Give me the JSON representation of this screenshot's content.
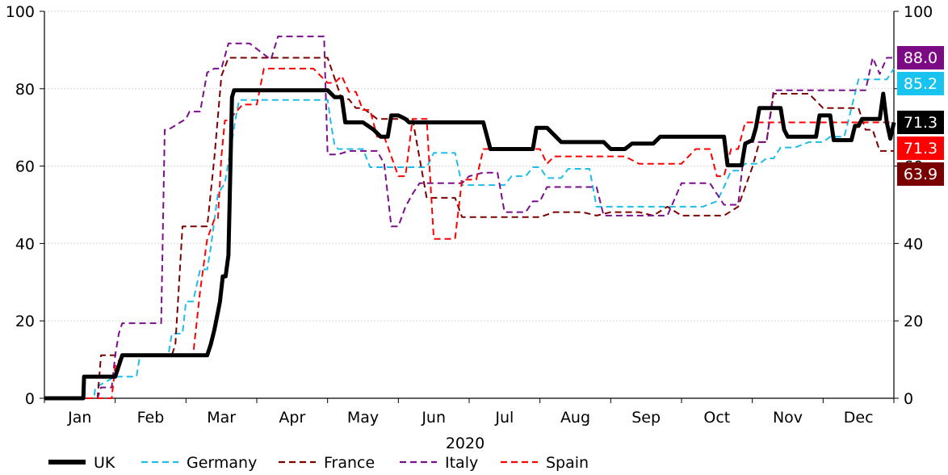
{
  "chart_data": {
    "type": "line",
    "xlabel": "2020",
    "months": [
      "Jan",
      "Feb",
      "Mar",
      "Apr",
      "May",
      "Jun",
      "Jul",
      "Aug",
      "Sep",
      "Oct",
      "Nov",
      "Dec"
    ],
    "ylim": [
      0,
      100
    ],
    "yticks": [
      0,
      20,
      40,
      60,
      80,
      100
    ],
    "xlim": [
      0,
      12
    ],
    "grid": true,
    "legend_position": "bottom",
    "series": [
      {
        "name": "UK",
        "color": "#000000",
        "style": "solid",
        "end_label": "71.3",
        "end_label_color": "#000000",
        "x": [
          0,
          0.55,
          0.56,
          1.0,
          1.1,
          1.12,
          2.3,
          2.35,
          2.4,
          2.45,
          2.48,
          2.52,
          2.56,
          2.6,
          2.65,
          2.68,
          2.72,
          2.75,
          2.8,
          2.85,
          2.9,
          3.1,
          4.0,
          4.1,
          4.2,
          4.25,
          4.3,
          4.45,
          4.5,
          4.65,
          4.75,
          4.85,
          4.9,
          5.0,
          5.1,
          5.15,
          5.3,
          5.35,
          5.4,
          5.45,
          5.5,
          5.55,
          5.6,
          5.7,
          5.8,
          5.9,
          6.2,
          6.3,
          6.35,
          6.45,
          6.9,
          6.95,
          7.0,
          7.1,
          7.3,
          7.4,
          7.6,
          7.8,
          7.9,
          8.0,
          8.1,
          8.2,
          8.3,
          8.4,
          8.6,
          8.7,
          8.9,
          9.0,
          9.6,
          9.65,
          9.85,
          9.9,
          10.0,
          10.05,
          10.1,
          10.35,
          10.4,
          10.45,
          10.5,
          10.9,
          10.95,
          11.0,
          11.1,
          11.15,
          11.4,
          11.45,
          11.5,
          11.55,
          11.6,
          11.7,
          11.8,
          11.85,
          11.9,
          11.95,
          12.0
        ],
        "y": [
          0,
          0,
          5.6,
          5.6,
          11.1,
          11.1,
          11.1,
          13.9,
          17.6,
          22.2,
          25,
          31.5,
          31.5,
          37,
          77.8,
          79.6,
          79.6,
          79.6,
          79.6,
          79.6,
          79.6,
          79.6,
          79.6,
          77.8,
          77.8,
          71.3,
          71.3,
          71.3,
          71.3,
          69.4,
          67.6,
          67.6,
          73.1,
          73.1,
          72.2,
          71.3,
          71.3,
          71.3,
          71.3,
          71.3,
          71.3,
          71.3,
          71.3,
          71.3,
          71.3,
          71.3,
          71.3,
          64.4,
          64.4,
          64.4,
          64.4,
          69.9,
          69.9,
          69.9,
          66.2,
          66.2,
          66.2,
          66.2,
          66.2,
          64.4,
          64.4,
          64.4,
          65.8,
          65.8,
          65.8,
          67.6,
          67.6,
          67.6,
          67.6,
          60.2,
          60.2,
          65.8,
          66.7,
          69.9,
          75,
          75,
          75,
          69.4,
          67.6,
          67.6,
          73.1,
          73.1,
          73.1,
          66.7,
          66.7,
          70.4,
          70.4,
          72.2,
          72.2,
          72.2,
          72.2,
          78.7,
          71.3,
          67.1,
          71.3
        ]
      },
      {
        "name": "Germany",
        "color": "#1fbde9",
        "style": "dashed",
        "end_label": "85.2",
        "end_label_color": "#19c3ef",
        "x": [
          0,
          0.7,
          0.72,
          1.0,
          1.3,
          1.35,
          1.75,
          1.8,
          1.85,
          1.95,
          2.0,
          2.1,
          2.2,
          2.3,
          2.35,
          2.45,
          2.55,
          2.6,
          2.7,
          2.75,
          2.8,
          2.9,
          3.1,
          3.5,
          4.0,
          4.05,
          4.1,
          4.15,
          4.3,
          4.5,
          4.6,
          4.7,
          5.0,
          5.15,
          5.3,
          5.4,
          5.5,
          5.7,
          5.8,
          5.9,
          6.0,
          6.2,
          6.4,
          6.5,
          6.6,
          6.8,
          6.9,
          7.0,
          7.1,
          7.2,
          7.3,
          7.4,
          7.5,
          7.6,
          7.7,
          7.8,
          7.9,
          8.0,
          8.1,
          8.2,
          8.3,
          8.5,
          8.8,
          8.9,
          9.0,
          9.1,
          9.2,
          9.3,
          9.5,
          9.6,
          9.7,
          9.8,
          9.9,
          10.0,
          10.1,
          10.2,
          10.3,
          10.4,
          10.5,
          10.6,
          10.8,
          10.9,
          11.0,
          11.1,
          11.2,
          11.3,
          11.4,
          11.5,
          11.6,
          11.7,
          11.8,
          11.9,
          12.0
        ],
        "y": [
          0,
          0,
          2.8,
          5.6,
          5.6,
          11.1,
          11.1,
          16.7,
          16.7,
          16.7,
          25,
          25,
          33.3,
          33.3,
          38.9,
          52.8,
          55.6,
          61.1,
          72.2,
          77.1,
          77.1,
          77.1,
          77.1,
          77.1,
          77.1,
          70.8,
          65.3,
          64.4,
          64.4,
          64.4,
          59.7,
          59.7,
          59.7,
          59.7,
          59.7,
          59.7,
          63.4,
          63.4,
          63.4,
          55.1,
          55.1,
          55.1,
          55.1,
          55.1,
          57.4,
          57.4,
          59.7,
          59.7,
          56.9,
          56.9,
          56.9,
          59.3,
          59.3,
          59.3,
          59.3,
          49.5,
          49.5,
          49.5,
          49.5,
          49.5,
          49.5,
          49.5,
          49.5,
          49.5,
          49.5,
          49.5,
          49.5,
          49.5,
          50.9,
          54.6,
          58.8,
          58.8,
          60.6,
          60.6,
          60.6,
          62.0,
          62.0,
          64.8,
          64.8,
          64.8,
          66.2,
          66.2,
          66.2,
          67.6,
          67.6,
          67.6,
          75.0,
          82.4,
          82.4,
          82.4,
          82.4,
          82.4,
          85.2
        ]
      },
      {
        "name": "France",
        "color": "#7b0000",
        "style": "dashed",
        "end_label": "63.9",
        "end_label_color": "#7a0000",
        "x": [
          0,
          0.75,
          0.8,
          1.0,
          1.1,
          1.12,
          1.8,
          1.85,
          1.95,
          2.0,
          2.3,
          2.4,
          2.5,
          2.55,
          2.6,
          3.2,
          3.3,
          3.4,
          4.0,
          4.2,
          4.3,
          4.4,
          4.5,
          4.7,
          4.9,
          5.1,
          5.2,
          5.4,
          5.6,
          5.8,
          5.9,
          6.0,
          6.5,
          6.8,
          6.9,
          7.0,
          7.2,
          7.3,
          7.5,
          7.6,
          7.8,
          8.0,
          8.2,
          8.4,
          8.6,
          8.8,
          9.0,
          9.2,
          9.4,
          9.6,
          9.8,
          10.0,
          10.1,
          10.2,
          10.3,
          10.4,
          10.5,
          10.8,
          11.0,
          11.1,
          11.2,
          11.5,
          11.6,
          11.7,
          11.8,
          11.9,
          12.0
        ],
        "y": [
          0,
          0,
          11.1,
          11.1,
          11.1,
          11.1,
          11.1,
          13.9,
          44.4,
          44.4,
          44.4,
          62,
          83.3,
          85.6,
          88,
          88,
          88,
          88,
          88,
          77.3,
          77.3,
          75,
          75,
          72.2,
          72.2,
          72.2,
          72.2,
          51.8,
          51.8,
          51.8,
          46.8,
          46.8,
          46.8,
          46.8,
          46.8,
          46.8,
          48.1,
          48.1,
          48.1,
          48.1,
          47.2,
          48.1,
          48.1,
          48.1,
          47.2,
          49.5,
          47.2,
          47.2,
          47.2,
          47.2,
          49.5,
          59.7,
          66.2,
          66.2,
          78.7,
          78.7,
          78.7,
          78.7,
          75.0,
          75.0,
          75.0,
          75.0,
          69.4,
          69.4,
          63.9,
          63.9,
          63.9
        ]
      },
      {
        "name": "Italy",
        "color": "#7a0f8b",
        "style": "dashed",
        "end_label": "88.0",
        "end_label_color": "#7d0a85",
        "x": [
          0,
          0.75,
          0.8,
          0.95,
          1.0,
          1.05,
          1.1,
          1.6,
          1.65,
          1.7,
          1.75,
          2.0,
          2.05,
          2.2,
          2.3,
          2.4,
          2.5,
          2.6,
          2.65,
          2.9,
          3.2,
          3.3,
          3.5,
          3.8,
          3.95,
          4.0,
          4.15,
          4.3,
          4.4,
          4.5,
          4.6,
          4.7,
          4.8,
          4.9,
          5.0,
          5.1,
          5.2,
          5.3,
          5.4,
          5.5,
          5.6,
          5.7,
          5.8,
          5.9,
          6.0,
          6.2,
          6.3,
          6.4,
          6.5,
          6.6,
          6.7,
          6.8,
          6.9,
          7.0,
          7.1,
          7.2,
          7.3,
          7.4,
          7.5,
          7.6,
          7.7,
          7.8,
          7.9,
          8.0,
          8.2,
          8.4,
          8.6,
          8.8,
          9.0,
          9.2,
          9.4,
          9.6,
          9.7,
          9.8,
          9.9,
          10.0,
          10.1,
          10.2,
          10.3,
          10.4,
          10.5,
          10.6,
          10.8,
          11.0,
          11.2,
          11.4,
          11.5,
          11.6,
          11.7,
          11.8,
          11.9,
          12.0
        ],
        "y": [
          0,
          0,
          2.8,
          2.8,
          11.1,
          16.7,
          19.4,
          19.4,
          19.4,
          69.4,
          69.4,
          72.2,
          74.1,
          74.1,
          84.2,
          85.2,
          85.2,
          91.7,
          91.7,
          91.7,
          87.5,
          93.5,
          93.5,
          93.5,
          93.5,
          63.0,
          63.0,
          63.9,
          63.9,
          63.9,
          63.9,
          63.9,
          60.6,
          44.4,
          44.4,
          49.5,
          52.8,
          55.6,
          55.6,
          55.6,
          55.6,
          55.6,
          55.6,
          55.6,
          57.4,
          58.3,
          58.3,
          58.3,
          48.1,
          48.1,
          48.1,
          48.1,
          50.9,
          50.9,
          54.6,
          54.6,
          54.6,
          54.6,
          54.6,
          54.6,
          54.6,
          54.6,
          47.2,
          47.2,
          47.2,
          47.2,
          47.2,
          47.2,
          55.6,
          55.6,
          55.6,
          50.0,
          50.0,
          50.0,
          66.2,
          66.2,
          66.2,
          66.2,
          79.6,
          79.6,
          79.6,
          79.6,
          79.6,
          79.6,
          79.6,
          79.6,
          79.6,
          79.6,
          88.0,
          83.8,
          88.0,
          88.0
        ]
      },
      {
        "name": "Spain",
        "color": "#ff0000",
        "style": "dashed",
        "end_label": "71.3",
        "end_label_color": "#ff0000",
        "x": [
          0,
          0.95,
          1.0,
          1.1,
          1.12,
          2.0,
          2.1,
          2.2,
          2.3,
          2.4,
          2.45,
          2.5,
          2.55,
          2.6,
          2.8,
          2.9,
          3.0,
          3.1,
          3.4,
          3.5,
          3.8,
          4.0,
          4.1,
          4.2,
          4.3,
          4.4,
          4.5,
          4.6,
          4.7,
          4.8,
          4.9,
          5.0,
          5.1,
          5.2,
          5.4,
          5.5,
          5.6,
          5.8,
          5.9,
          6.0,
          6.1,
          6.2,
          6.5,
          6.8,
          6.9,
          7.0,
          7.1,
          7.2,
          7.5,
          7.8,
          8.0,
          8.2,
          8.4,
          8.6,
          8.8,
          9.0,
          9.2,
          9.3,
          9.4,
          9.5,
          9.6,
          9.7,
          9.8,
          9.9,
          10.0,
          10.2,
          10.4,
          10.6,
          10.8,
          11.0,
          11.2,
          11.4,
          11.6,
          11.8,
          12.0
        ],
        "y": [
          0,
          0,
          8.3,
          11.1,
          11.1,
          11.1,
          11.1,
          27.8,
          41.2,
          46.2,
          46.2,
          62.5,
          71.8,
          71.8,
          75.9,
          75.9,
          75.9,
          85.2,
          85.2,
          85.2,
          85.2,
          81.5,
          81.5,
          83.3,
          79.2,
          79.2,
          74.5,
          74.5,
          67.6,
          67.6,
          62.5,
          57.4,
          57.4,
          72.2,
          72.2,
          41.2,
          41.2,
          41.2,
          56.5,
          56.5,
          56.5,
          64.4,
          64.4,
          64.4,
          64.4,
          64.4,
          60.6,
          62.5,
          62.5,
          62.5,
          62.5,
          62.5,
          60.6,
          60.6,
          60.6,
          60.6,
          64.4,
          64.4,
          64.4,
          57.4,
          57.4,
          64.4,
          64.4,
          71.3,
          71.3,
          71.3,
          71.3,
          71.3,
          71.3,
          71.3,
          71.3,
          71.3,
          71.3,
          71.3,
          71.3
        ]
      }
    ]
  }
}
